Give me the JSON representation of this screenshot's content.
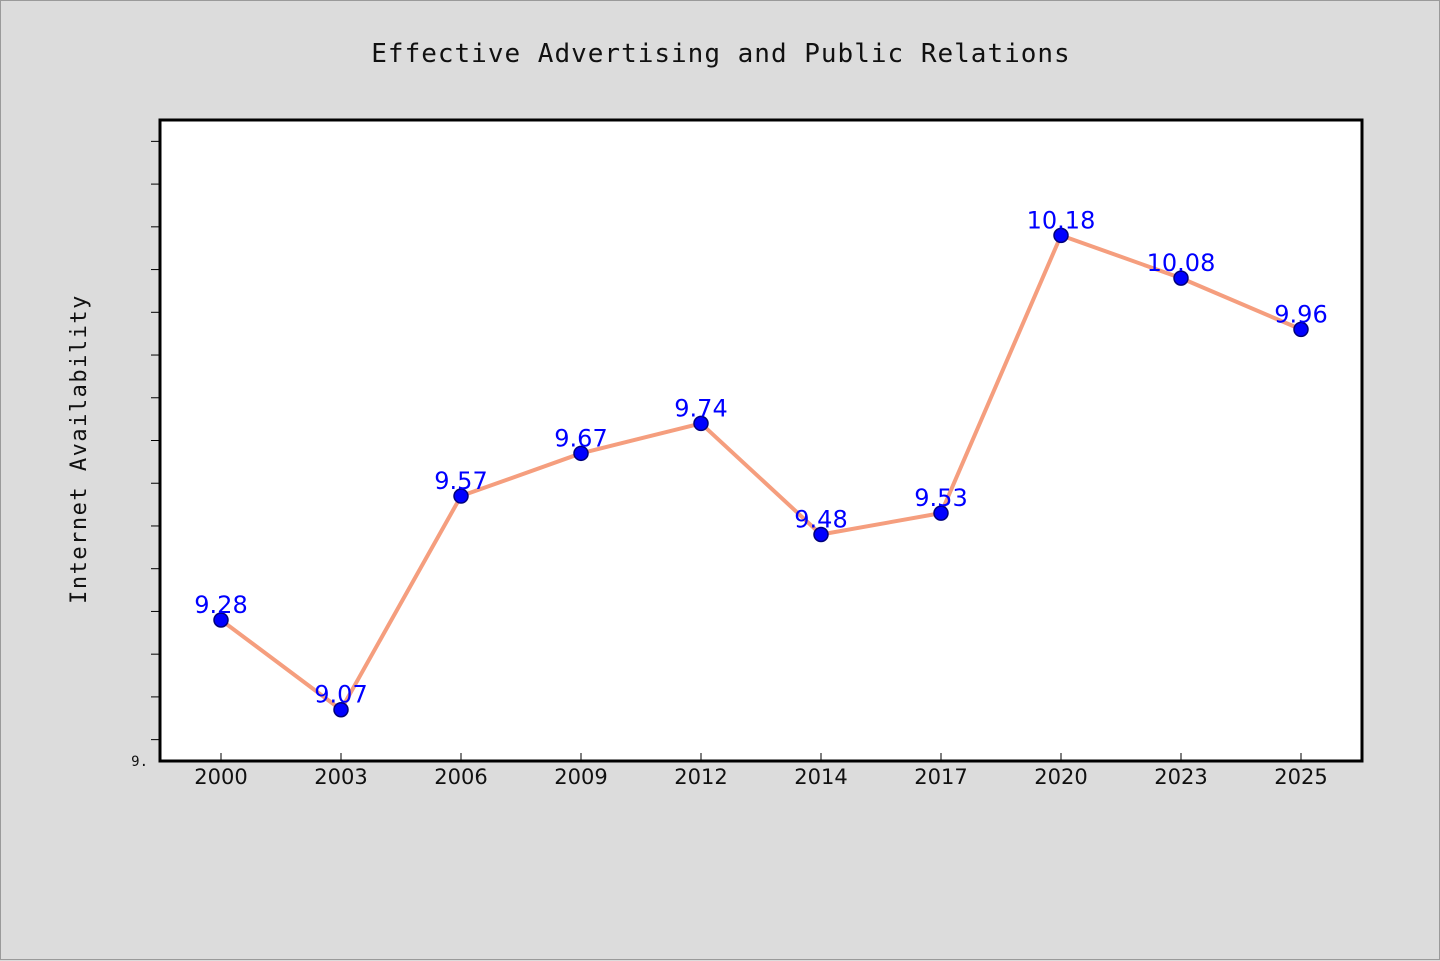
{
  "chart_data": {
    "type": "line",
    "title": "Effective Advertising and Public Relations",
    "xlabel": "",
    "ylabel": "Internet Availability",
    "categories": [
      "2000",
      "2003",
      "2006",
      "2009",
      "2012",
      "2014",
      "2017",
      "2020",
      "2023",
      "2025"
    ],
    "series": [
      {
        "values": [
          9.28,
          9.07,
          9.57,
          9.67,
          9.74,
          9.48,
          9.53,
          10.18,
          10.08,
          9.96
        ]
      }
    ],
    "data_labels": [
      "9.28",
      "9.07",
      "9.57",
      "9.67",
      "9.74",
      "9.48",
      "9.53",
      "10.18",
      "10.08",
      "9.96"
    ],
    "y_tick_labels": [
      "9."
    ],
    "ylim": [
      8.95,
      10.45
    ],
    "y_minor_step": 0.1,
    "grid": false,
    "legend": "none",
    "colors": {
      "background": "#dcdcdc",
      "plot_area": "#ffffff",
      "line": "#f59e7e",
      "marker": "#0000ff",
      "marker_edge": "#00007a",
      "data_label": "#0000ff"
    }
  }
}
